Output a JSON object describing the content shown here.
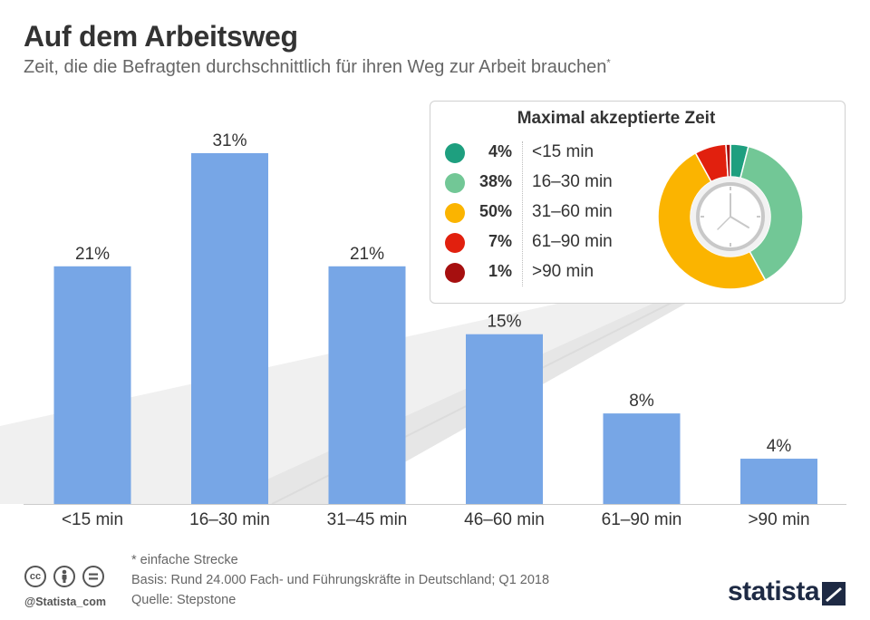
{
  "title": "Auf dem Arbeitsweg",
  "subtitle": "Zeit, die die Befragten durchschnittlich für ihren Weg zur Arbeit brauchen",
  "subtitle_footnote_mark": "*",
  "chart_data": [
    {
      "type": "bar",
      "title": "Auf dem Arbeitsweg",
      "categories": [
        "<15 min",
        "16–30 min",
        "31–45 min",
        "46–60 min",
        "61–90 min",
        ">90 min"
      ],
      "values": [
        21,
        31,
        21,
        15,
        8,
        4
      ],
      "value_labels": [
        "21%",
        "31%",
        "21%",
        "15%",
        "8%",
        "4%"
      ],
      "unit": "%",
      "ylim": [
        0,
        35
      ],
      "color": "#77a6e6",
      "grid": false
    },
    {
      "type": "pie",
      "title": "Maximal akzeptierte Zeit",
      "categories": [
        "<15 min",
        "16–30 min",
        "31–60 min",
        "61–90 min",
        ">90 min"
      ],
      "values": [
        4,
        38,
        50,
        7,
        1
      ],
      "value_labels": [
        "4%",
        "38%",
        "50%",
        "7%",
        "1%"
      ],
      "colors": [
        "#1e9f7f",
        "#72c796",
        "#fbb400",
        "#e1200e",
        "#a60f0f"
      ],
      "donut": true,
      "center_icon": "clock-icon",
      "legend_position": "left"
    }
  ],
  "footer": {
    "note": "* einfache Strecke",
    "basis": "Basis: Rund 24.000 Fach- und Führungskräfte in Deutschland; Q1 2018",
    "source": "Quelle: Stepstone"
  },
  "license_icons": [
    "cc-icon",
    "by-icon",
    "nd-icon"
  ],
  "handle": "@Statista_com",
  "brand": "statista"
}
